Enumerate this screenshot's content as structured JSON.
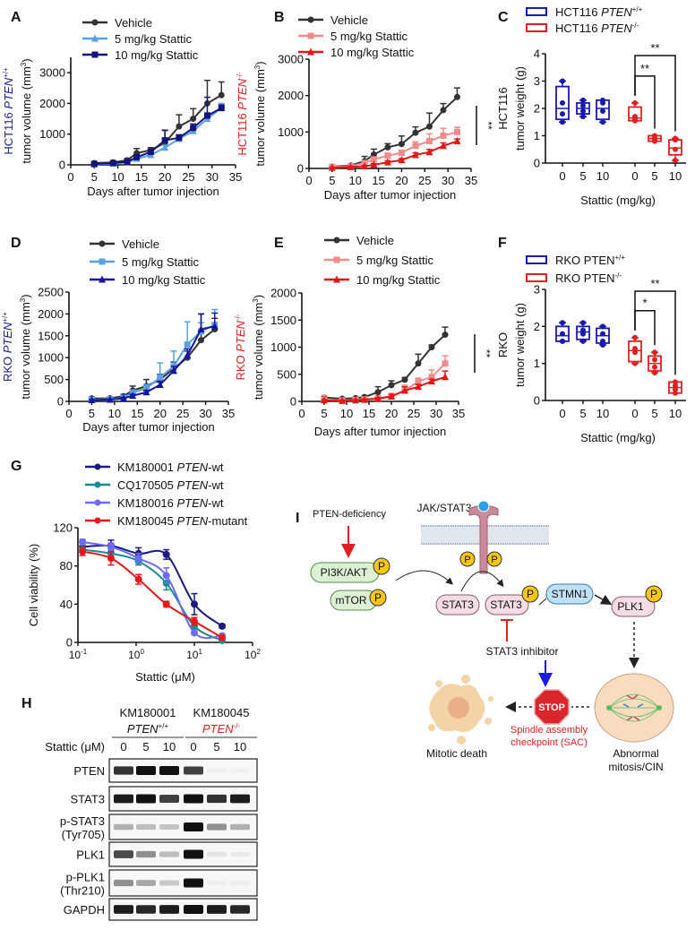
{
  "panel_labels": {
    "A": "A",
    "B": "B",
    "C": "C",
    "D": "D",
    "E": "E",
    "F": "F",
    "G": "G",
    "H": "H",
    "I": "I"
  },
  "chart_data": [
    {
      "id": "A",
      "type": "line",
      "ylabel_line1": {
        "prefix": "HCT116 ",
        "gene": "PTEN",
        "genotype": "+/+"
      },
      "ylabel_line2": "tumor volume (mm",
      "ylabel_unit_sup": "3",
      "ylabel_close": ")",
      "ylabel_color": "#1f1f8f",
      "xlabel": "Days after tumor injection",
      "xlim": [
        0,
        35
      ],
      "ylim": [
        0,
        3500
      ],
      "xticks": [
        0,
        5,
        10,
        15,
        20,
        25,
        30,
        35
      ],
      "yticks": [
        0,
        1000,
        2000,
        3000
      ],
      "x": [
        5,
        9,
        12,
        14,
        17,
        20,
        23,
        26,
        29,
        32
      ],
      "series": [
        {
          "name": "Vehicle",
          "color": "#333333",
          "marker": "circle",
          "values": [
            60,
            80,
            150,
            380,
            480,
            720,
            1250,
            1500,
            2000,
            2270
          ],
          "err": [
            30,
            30,
            60,
            150,
            80,
            400,
            380,
            330,
            750,
            430
          ]
        },
        {
          "name": "5 mg/kg Stattic",
          "color": "#5aa0e6",
          "marker": "triangle",
          "values": [
            20,
            40,
            80,
            200,
            320,
            560,
            850,
            1100,
            1500,
            1850
          ],
          "err": [
            10,
            20,
            30,
            50,
            60,
            80,
            100,
            120,
            200,
            150
          ]
        },
        {
          "name": "10 mg/kg Stattic",
          "color": "#14147a",
          "marker": "square",
          "values": [
            30,
            60,
            100,
            250,
            420,
            800,
            880,
            1200,
            1600,
            1850
          ],
          "err": [
            10,
            20,
            30,
            60,
            80,
            330,
            100,
            130,
            600,
            100
          ]
        }
      ],
      "significance": ""
    },
    {
      "id": "B",
      "type": "line",
      "ylabel_line1": {
        "prefix": "HCT116 ",
        "gene": "PTEN",
        "genotype": "-/-"
      },
      "ylabel_line2": "tumor volume (mm",
      "ylabel_unit_sup": "3",
      "ylabel_close": ")",
      "ylabel_color": "#e02020",
      "xlabel": "Days after tumor injection",
      "xlim": [
        0,
        35
      ],
      "ylim": [
        0,
        3000
      ],
      "xticks": [
        0,
        5,
        10,
        15,
        20,
        25,
        30,
        35
      ],
      "yticks": [
        0,
        1000,
        2000,
        3000
      ],
      "x": [
        5,
        9,
        12,
        14,
        17,
        20,
        23,
        26,
        29,
        32
      ],
      "series": [
        {
          "name": "Vehicle",
          "color": "#333333",
          "marker": "circle",
          "values": [
            50,
            80,
            200,
            380,
            580,
            670,
            980,
            1150,
            1600,
            1960
          ],
          "err": [
            20,
            30,
            130,
            150,
            100,
            220,
            160,
            370,
            180,
            250
          ]
        },
        {
          "name": "5 mg/kg Stattic",
          "color": "#f28b8b",
          "marker": "square",
          "values": [
            40,
            60,
            150,
            250,
            350,
            430,
            620,
            750,
            900,
            1000
          ],
          "err": [
            60,
            30,
            40,
            60,
            70,
            60,
            110,
            200,
            200,
            130
          ]
        },
        {
          "name": "10 mg/kg Stattic",
          "color": "#e01818",
          "marker": "triangle",
          "values": [
            20,
            40,
            60,
            100,
            170,
            230,
            370,
            450,
            620,
            750
          ],
          "err": [
            10,
            20,
            20,
            30,
            40,
            40,
            60,
            70,
            80,
            60
          ]
        }
      ],
      "significance": "**"
    },
    {
      "id": "C",
      "type": "box",
      "legend": [
        {
          "prefix": "HCT116 ",
          "gene": "PTEN",
          "genotype": "+/+",
          "color": "#1a1ab0"
        },
        {
          "prefix": "HCT116 ",
          "gene": "PTEN",
          "genotype": "-/-",
          "color": "#e02020"
        }
      ],
      "ylabel_line1": "HCT116",
      "ylabel_line2": "tumor weight (g)",
      "xlabel": "Stattic  (mg/kg)",
      "ylim": [
        0,
        4
      ],
      "yticks": [
        0,
        1,
        2,
        3,
        4
      ],
      "groups": [
        {
          "dose": "0",
          "genotype": "+/+",
          "points": [
            3.0,
            2.2,
            1.8,
            1.5
          ],
          "q1": 1.6,
          "median": 2.0,
          "q3": 2.8
        },
        {
          "dose": "5",
          "genotype": "+/+",
          "points": [
            2.3,
            2.1,
            1.9,
            1.7
          ],
          "q1": 1.8,
          "median": 2.0,
          "q3": 2.2
        },
        {
          "dose": "10",
          "genotype": "+/+",
          "points": [
            2.3,
            2.2,
            1.9,
            1.5
          ],
          "q1": 1.6,
          "median": 2.0,
          "q3": 2.3
        },
        {
          "dose": "0",
          "genotype": "-/-",
          "points": [
            2.2,
            1.7,
            1.6,
            1.55
          ],
          "q1": 1.55,
          "median": 1.65,
          "q3": 2.05
        },
        {
          "dose": "5",
          "genotype": "-/-",
          "points": [
            1.0,
            0.9,
            0.85,
            0.8
          ],
          "q1": 0.8,
          "median": 0.9,
          "q3": 1.0
        },
        {
          "dose": "10",
          "genotype": "-/-",
          "points": [
            0.9,
            0.85,
            0.5,
            0.1
          ],
          "q1": 0.3,
          "median": 0.55,
          "q3": 0.85
        }
      ],
      "brackets": [
        {
          "from": 3,
          "to": 4,
          "label": "**"
        },
        {
          "from": 3,
          "to": 5,
          "label": "**"
        }
      ]
    },
    {
      "id": "D",
      "type": "line",
      "ylabel_line1": {
        "prefix": "RKO ",
        "gene": "PTEN",
        "genotype": "+/+"
      },
      "ylabel_line2": "tumor volume (mm",
      "ylabel_unit_sup": "3",
      "ylabel_close": ")",
      "ylabel_color": "#1f1f8f",
      "xlabel": "Days after tumor injection",
      "xlim": [
        0,
        35
      ],
      "ylim": [
        0,
        2500
      ],
      "xticks": [
        0,
        5,
        10,
        15,
        20,
        25,
        30,
        35
      ],
      "yticks": [
        0,
        500,
        1000,
        1500,
        2000,
        2500
      ],
      "x": [
        5,
        9,
        12,
        14,
        17,
        20,
        23,
        26,
        29,
        32
      ],
      "series": [
        {
          "name": "Vehicle",
          "color": "#333333",
          "marker": "circle",
          "values": [
            70,
            70,
            120,
            250,
            350,
            500,
            750,
            1000,
            1400,
            1650
          ],
          "err": [
            20,
            20,
            40,
            100,
            150,
            120,
            150,
            150,
            600,
            250
          ]
        },
        {
          "name": "5 mg/kg Stattic",
          "color": "#5aa0e6",
          "marker": "square",
          "values": [
            40,
            50,
            80,
            200,
            300,
            550,
            800,
            1300,
            1600,
            1750
          ],
          "err": [
            20,
            20,
            30,
            60,
            80,
            330,
            350,
            520,
            200,
            350
          ]
        },
        {
          "name": "10 mg/kg Stattic",
          "color": "#1515a0",
          "marker": "triangle",
          "values": [
            30,
            40,
            70,
            130,
            210,
            380,
            700,
            1050,
            1650,
            1720
          ],
          "err": [
            10,
            10,
            20,
            30,
            40,
            60,
            100,
            150,
            350,
            300
          ]
        }
      ],
      "significance": ""
    },
    {
      "id": "E",
      "type": "line",
      "ylabel_line1": {
        "prefix": "RKO ",
        "gene": "PTEN",
        "genotype": "-/-"
      },
      "ylabel_line2": "tumor volume (mm",
      "ylabel_unit_sup": "3",
      "ylabel_close": ")",
      "ylabel_color": "#e02020",
      "xlabel": "Days after tumor injection",
      "xlim": [
        0,
        35
      ],
      "ylim": [
        0,
        2000
      ],
      "xticks": [
        0,
        5,
        10,
        15,
        20,
        25,
        30,
        35
      ],
      "yticks": [
        0,
        500,
        1000,
        1500,
        2000
      ],
      "x": [
        5,
        9,
        12,
        14,
        17,
        20,
        23,
        26,
        29,
        32
      ],
      "series": [
        {
          "name": "Vehicle",
          "color": "#333333",
          "marker": "circle",
          "values": [
            70,
            50,
            60,
            80,
            170,
            300,
            400,
            700,
            1000,
            1230
          ],
          "err": [
            30,
            20,
            20,
            20,
            100,
            80,
            40,
            170,
            40,
            140
          ]
        },
        {
          "name": "5 mg/kg Stattic",
          "color": "#f28b8b",
          "marker": "square",
          "values": [
            30,
            20,
            30,
            40,
            60,
            100,
            200,
            370,
            450,
            700
          ],
          "err": [
            80,
            20,
            20,
            20,
            30,
            40,
            100,
            60,
            130,
            140
          ]
        },
        {
          "name": "10 mg/kg Stattic",
          "color": "#e01818",
          "marker": "triangle",
          "values": [
            20,
            10,
            20,
            30,
            50,
            90,
            200,
            270,
            370,
            450
          ],
          "err": [
            10,
            10,
            10,
            10,
            20,
            40,
            70,
            40,
            40,
            110
          ]
        }
      ],
      "significance": "**"
    },
    {
      "id": "F",
      "type": "box",
      "legend": [
        {
          "prefix": "RKO PTEN",
          "gene": "",
          "genotype": "+/+",
          "color": "#1a1ab0"
        },
        {
          "prefix": "RKO PTEN",
          "gene": "",
          "genotype": "-/-",
          "color": "#e02020"
        }
      ],
      "ylabel_line1": "RKO",
      "ylabel_line2": "tumor weight (g)",
      "xlabel": "Stattic  (mg/kg)",
      "ylim": [
        0,
        3
      ],
      "yticks": [
        0,
        1,
        2,
        3
      ],
      "groups": [
        {
          "dose": "0",
          "genotype": "+/+",
          "points": [
            2.1,
            1.8,
            1.6,
            1.6
          ],
          "q1": 1.6,
          "median": 1.75,
          "q3": 2.0
        },
        {
          "dose": "5",
          "genotype": "+/+",
          "points": [
            2.1,
            1.9,
            1.8,
            1.6
          ],
          "q1": 1.65,
          "median": 1.85,
          "q3": 2.0
        },
        {
          "dose": "10",
          "genotype": "+/+",
          "points": [
            2.0,
            1.8,
            1.6,
            1.5
          ],
          "q1": 1.55,
          "median": 1.75,
          "q3": 1.95
        },
        {
          "dose": "0",
          "genotype": "-/-",
          "points": [
            1.7,
            1.4,
            1.3,
            1.0
          ],
          "q1": 1.05,
          "median": 1.35,
          "q3": 1.6
        },
        {
          "dose": "5",
          "genotype": "-/-",
          "points": [
            1.3,
            1.1,
            0.9,
            0.75
          ],
          "q1": 0.8,
          "median": 1.0,
          "q3": 1.2
        },
        {
          "dose": "10",
          "genotype": "-/-",
          "points": [
            0.5,
            0.4,
            0.3,
            0.2
          ],
          "q1": 0.2,
          "median": 0.35,
          "q3": 0.5
        }
      ],
      "brackets": [
        {
          "from": 3,
          "to": 4,
          "label": "*"
        },
        {
          "from": 3,
          "to": 5,
          "label": "**"
        }
      ]
    },
    {
      "id": "G",
      "type": "line",
      "xscale": "log",
      "ylabel": "Cell viability (%)",
      "xlabel": "Stattic (μM)",
      "xlim": [
        0.1,
        100
      ],
      "ylim": [
        0,
        120
      ],
      "xticks": [
        {
          "base": "10",
          "exp": "-1"
        },
        {
          "base": "10",
          "exp": "0"
        },
        {
          "base": "10",
          "exp": "1"
        },
        {
          "base": "10",
          "exp": "2"
        }
      ],
      "yticks": [
        0,
        40,
        80,
        120
      ],
      "x": [
        0.12,
        0.37,
        1.1,
        3.3,
        10,
        30
      ],
      "series": [
        {
          "name_id": "KM180001 ",
          "name_gene": "PTEN",
          "name_suffix": "-wt",
          "color": "#1a1a80",
          "values": [
            100,
            101,
            93,
            92,
            40,
            17
          ],
          "err": [
            4,
            6,
            6,
            5,
            11,
            2
          ]
        },
        {
          "name_id": "CQ170505 ",
          "name_gene": "PTEN",
          "name_suffix": "-wt",
          "color": "#1a8a95",
          "values": [
            97,
            93,
            85,
            62,
            17,
            2
          ],
          "err": [
            3,
            4,
            4,
            7,
            3,
            1
          ]
        },
        {
          "name_id": "KM180016 ",
          "name_gene": "PTEN",
          "name_suffix": "-wt",
          "color": "#6c6cf0",
          "values": [
            105,
            100,
            88,
            70,
            10,
            7
          ],
          "err": [
            3,
            4,
            5,
            8,
            2,
            2
          ]
        },
        {
          "name_id": "KM180045 ",
          "name_gene": "PTEN",
          "name_suffix": "-mutant",
          "color": "#e81818",
          "values": [
            95,
            88,
            66,
            40,
            22,
            5
          ],
          "err": [
            4,
            7,
            5,
            3,
            4,
            1
          ]
        }
      ]
    }
  ],
  "western_blot": {
    "cell_lines": [
      {
        "name": "KM180001",
        "gene": "PTEN",
        "genotype": "+/+",
        "color": "#111111"
      },
      {
        "name": "KM180045",
        "gene": "PTEN",
        "genotype": "-/-",
        "color": "#e02020"
      }
    ],
    "treatment_label": "Stattic (μM)",
    "doses": [
      "0",
      "5",
      "10",
      "0",
      "5",
      "10"
    ],
    "rows": [
      {
        "label": "PTEN",
        "sublabel": "",
        "intensity": [
          0.85,
          1.0,
          1.0,
          0.8,
          0.02,
          0.02
        ]
      },
      {
        "label": "STAT3",
        "sublabel": "",
        "intensity": [
          0.95,
          1.0,
          0.8,
          1.0,
          0.85,
          0.95
        ]
      },
      {
        "label": "p-STAT3",
        "sublabel": "(Tyr705)",
        "intensity": [
          0.3,
          0.25,
          0.22,
          1.0,
          0.45,
          0.3
        ]
      },
      {
        "label": "PLK1",
        "sublabel": "",
        "intensity": [
          0.75,
          0.45,
          0.25,
          1.0,
          0.08,
          0.06
        ]
      },
      {
        "label": "p-PLK1",
        "sublabel": "(Thr210)",
        "intensity": [
          0.45,
          0.35,
          0.2,
          1.0,
          0.04,
          0.04
        ]
      },
      {
        "label": "GAPDH",
        "sublabel": "",
        "intensity": [
          0.95,
          0.9,
          0.95,
          1.0,
          0.95,
          0.9
        ]
      }
    ]
  },
  "diagram": {
    "receptor_label": "JAK/STAT3",
    "pten_deficiency": "PTEN-deficiency",
    "pi3k_akt": "PI3K/AKT",
    "mtor": "mTOR",
    "phospho": "P",
    "stat3_a": "STAT3",
    "stat3_b": "STAT3",
    "stmn1": "STMN1",
    "plk1": "PLK1",
    "inhibitor": "STAT3 inhibitor",
    "stop_sign": "STOP",
    "sac_line1": "Spindle assembly",
    "sac_line2": "checkpoint (SAC)",
    "mitotic_death": "Mitotic death",
    "abnormal_line1": "Abnormal",
    "abnormal_line2": "mitosis/CIN",
    "colors": {
      "activation": "#e02020",
      "inhibitor_arrow": "#1a1ae0",
      "sac_text": "#e02020",
      "stop": "#d9262b"
    }
  }
}
